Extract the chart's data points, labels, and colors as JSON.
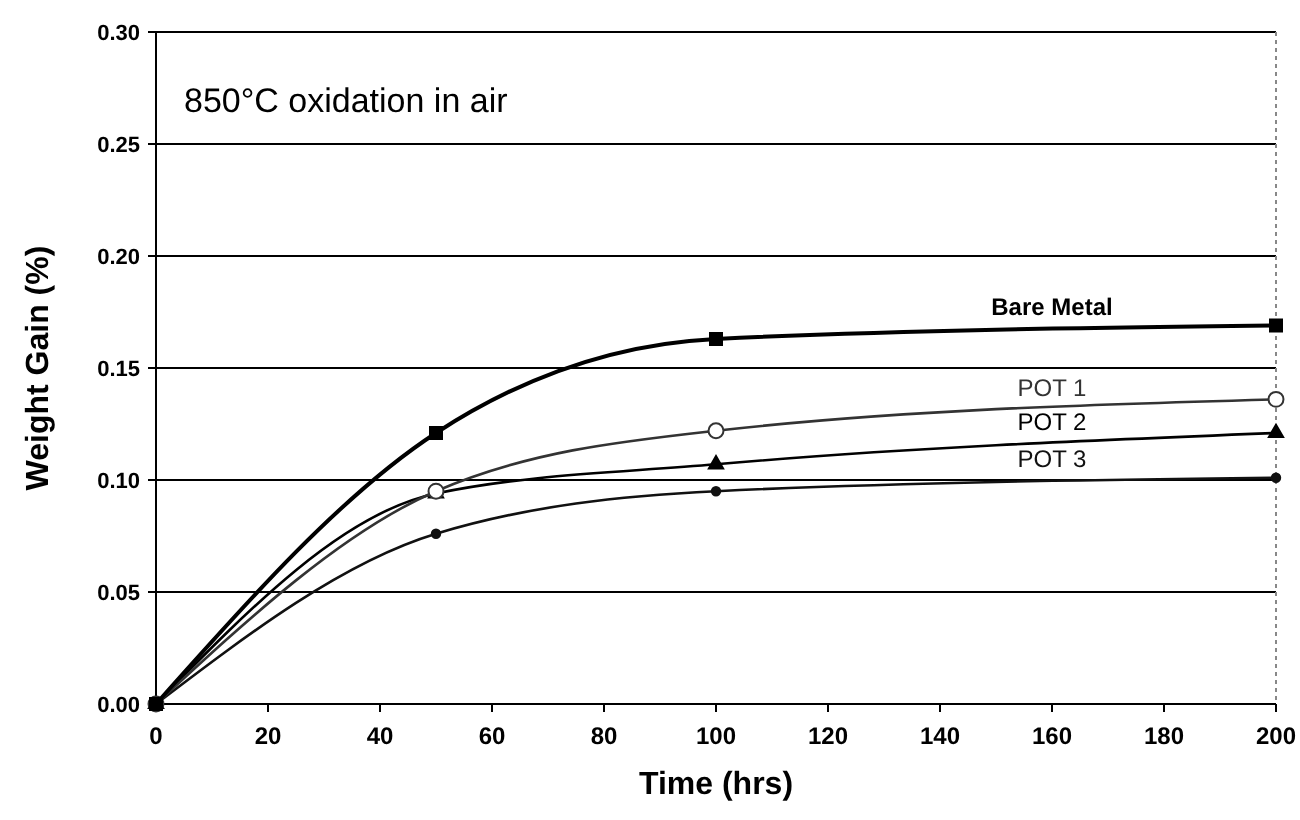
{
  "chart_data": {
    "type": "line",
    "xlabel": "Time (hrs)",
    "ylabel": "Weight Gain (%)",
    "annotations": [
      "850°C oxidation in air"
    ],
    "x": [
      0,
      50,
      100,
      200
    ],
    "series": [
      {
        "name": "Bare Metal",
        "color": "#000000",
        "marker": "square",
        "values": [
          0,
          0.121,
          0.163,
          0.169
        ]
      },
      {
        "name": "POT 1",
        "color": "#333333",
        "marker": "circle",
        "values": [
          0,
          0.095,
          0.122,
          0.136
        ]
      },
      {
        "name": "POT 2",
        "color": "#000000",
        "marker": "triangle",
        "values": [
          0,
          0.094,
          0.107,
          0.121
        ]
      },
      {
        "name": "POT 3",
        "color": "#111111",
        "marker": "circle",
        "values": [
          0,
          0.076,
          0.095,
          0.101
        ]
      }
    ],
    "xlim": [
      0,
      200
    ],
    "xticks": [
      0,
      20,
      40,
      60,
      80,
      100,
      120,
      140,
      160,
      180,
      200
    ],
    "ylim": [
      0,
      0.3
    ],
    "yticks": [
      {
        "value": 0,
        "label": "0.00"
      },
      {
        "value": 0.05,
        "label": "0.05"
      },
      {
        "value": 0.1,
        "label": "0.10"
      },
      {
        "value": 0.15,
        "label": "0.15"
      },
      {
        "value": 0.2,
        "label": "0.20"
      },
      {
        "value": 0.25,
        "label": "0.25"
      },
      {
        "value": 0.3,
        "label": "0.30"
      }
    ],
    "grid": "y"
  }
}
